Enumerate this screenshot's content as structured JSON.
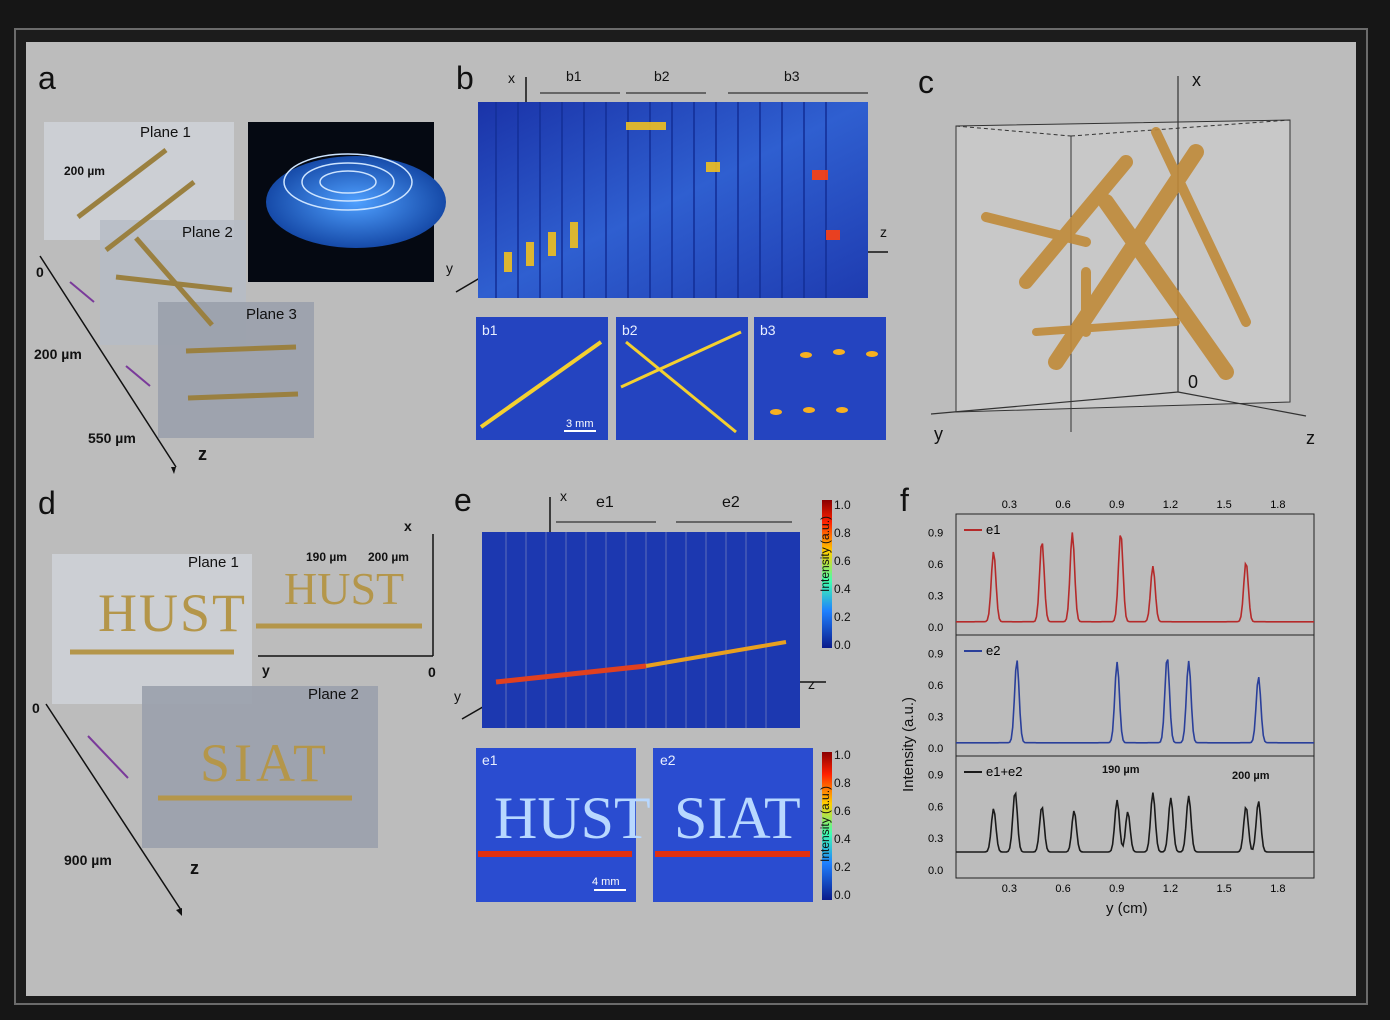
{
  "panels": {
    "a": {
      "letter": "a",
      "plane1": "Plane 1",
      "plane2": "Plane 2",
      "plane3": "Plane 3",
      "width": "200 µm",
      "d0": "0",
      "d1": "200 µm",
      "d2": "550 µm",
      "axis": "z"
    },
    "b": {
      "letter": "b",
      "x": "x",
      "y": "y",
      "z": "z",
      "b1": "b1",
      "b2": "b2",
      "b3": "b3",
      "scale": "3 mm"
    },
    "c": {
      "letter": "c",
      "x": "x",
      "y": "y",
      "z": "z",
      "zero": "0"
    },
    "d": {
      "letter": "d",
      "plane1": "Plane 1",
      "plane2": "Plane 2",
      "text1": "HUST",
      "text2": "SIAT",
      "gap1": "190 µm",
      "gap2": "200 µm",
      "x": "x",
      "y": "y",
      "zero_right": "0",
      "zero_left": "0",
      "depth": "900 µm",
      "axis": "z"
    },
    "e": {
      "letter": "e",
      "x": "x",
      "y": "y",
      "z": "z",
      "e1": "e1",
      "e2": "e2",
      "cb_label": "Intensity (a.u.)",
      "ticks": [
        "1.0",
        "0.8",
        "0.6",
        "0.4",
        "0.2",
        "0.0"
      ],
      "scale": "4 mm"
    },
    "f": {
      "letter": "f",
      "ylabel": "Intensity (a.u.)",
      "xlabel": "y (cm)",
      "ann1": "190 µm",
      "ann2": "200 µm"
    }
  },
  "chart_data": {
    "type": "line",
    "xlabel": "y (cm)",
    "ylabel": "Intensity (a.u.)",
    "xlim": [
      0,
      2.0
    ],
    "xticks": [
      0.3,
      0.6,
      0.9,
      1.2,
      1.5,
      1.8
    ],
    "ylim": [
      0,
      1
    ],
    "yticks": [
      0.0,
      0.3,
      0.6,
      0.9
    ],
    "series": [
      {
        "name": "e1",
        "color": "#b52a2a",
        "baseline": 0.05,
        "peaks": [
          [
            0.21,
            0.72
          ],
          [
            0.48,
            0.82
          ],
          [
            0.65,
            0.9
          ],
          [
            0.92,
            0.9
          ],
          [
            1.1,
            0.58
          ],
          [
            1.62,
            0.62
          ]
        ]
      },
      {
        "name": "e2",
        "color": "#2a3f9a",
        "baseline": 0.05,
        "peaks": [
          [
            0.34,
            0.84
          ],
          [
            0.9,
            0.82
          ],
          [
            1.18,
            0.87
          ],
          [
            1.3,
            0.83
          ],
          [
            1.69,
            0.68
          ]
        ]
      },
      {
        "name": "e1+e2",
        "color": "#1a1a1a",
        "baseline": 0.17,
        "peaks": [
          [
            0.21,
            0.58
          ],
          [
            0.33,
            0.74
          ],
          [
            0.48,
            0.6
          ],
          [
            0.66,
            0.56
          ],
          [
            0.9,
            0.66
          ],
          [
            0.96,
            0.55
          ],
          [
            1.1,
            0.73
          ],
          [
            1.2,
            0.68
          ],
          [
            1.3,
            0.7
          ],
          [
            1.62,
            0.6
          ],
          [
            1.69,
            0.65
          ]
        ]
      }
    ],
    "annotations": [
      "190 µm",
      "200 µm"
    ]
  }
}
